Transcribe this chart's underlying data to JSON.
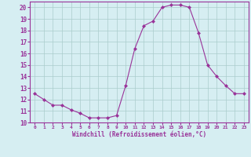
{
  "hours": [
    0,
    1,
    2,
    3,
    4,
    5,
    6,
    7,
    8,
    9,
    10,
    11,
    12,
    13,
    14,
    15,
    16,
    17,
    18,
    19,
    20,
    21,
    22,
    23
  ],
  "values": [
    12.5,
    12.0,
    11.5,
    11.5,
    11.1,
    10.8,
    10.4,
    10.4,
    10.4,
    10.6,
    13.2,
    16.4,
    18.4,
    18.8,
    20.0,
    20.2,
    20.2,
    20.0,
    17.8,
    15.0,
    14.0,
    13.2,
    12.5,
    12.5
  ],
  "line_color": "#993399",
  "marker": "D",
  "marker_size": 2,
  "bg_color": "#d6eef2",
  "grid_color": "#aacccc",
  "xlabel": "Windchill (Refroidissement éolien,°C)",
  "xlabel_color": "#993399",
  "tick_color": "#993399",
  "ylim": [
    10,
    20.5
  ],
  "yticks": [
    10,
    11,
    12,
    13,
    14,
    15,
    16,
    17,
    18,
    19,
    20
  ],
  "xticks": [
    0,
    1,
    2,
    3,
    4,
    5,
    6,
    7,
    8,
    9,
    10,
    11,
    12,
    13,
    14,
    15,
    16,
    17,
    18,
    19,
    20,
    21,
    22,
    23
  ],
  "border_color": "#993399"
}
